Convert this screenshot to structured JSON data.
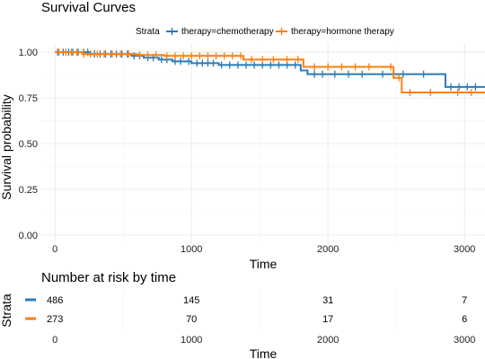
{
  "title": "Survival Curves",
  "legend": {
    "title": "Strata",
    "entries": [
      {
        "label": "therapy=chemotherapy",
        "color": "#2c7bb6"
      },
      {
        "label": "therapy=hormone therapy",
        "color": "#ff7f0e"
      }
    ]
  },
  "risk_table": {
    "title": "Number at risk by time",
    "ylabel": "Strata",
    "xlabel": "Time",
    "x_ticks": [
      "0",
      "1000",
      "2000",
      "3000"
    ],
    "rows": [
      {
        "color": "#2c7bb6",
        "counts": [
          "486",
          "145",
          "31",
          "7"
        ]
      },
      {
        "color": "#ff7f0e",
        "counts": [
          "273",
          "70",
          "17",
          "6"
        ]
      }
    ]
  },
  "chart_data": {
    "type": "line",
    "title": "Survival Curves",
    "xlabel": "Time",
    "ylabel": "Survival probability",
    "xlim": [
      -100,
      3150
    ],
    "ylim": [
      -0.05,
      1.05
    ],
    "x_ticks": [
      0,
      1000,
      2000,
      3000
    ],
    "y_ticks": [
      0,
      0.25,
      0.5,
      0.75,
      1.0
    ],
    "y_tick_labels": [
      "0.00",
      "0.25",
      "0.50",
      "0.75",
      "1.00"
    ],
    "grid": true,
    "legend_position": "top",
    "series": [
      {
        "name": "therapy=chemotherapy",
        "color": "#2c7bb6",
        "steps": [
          [
            0,
            1.0
          ],
          [
            260,
            0.99
          ],
          [
            560,
            0.98
          ],
          [
            650,
            0.97
          ],
          [
            760,
            0.96
          ],
          [
            860,
            0.95
          ],
          [
            1000,
            0.94
          ],
          [
            1200,
            0.93
          ],
          [
            1800,
            0.9
          ],
          [
            1850,
            0.88
          ],
          [
            2860,
            0.81
          ],
          [
            3150,
            0.81
          ]
        ],
        "censor_times": [
          20,
          60,
          100,
          130,
          170,
          210,
          240,
          290,
          330,
          370,
          410,
          450,
          490,
          530,
          580,
          620,
          680,
          720,
          780,
          820,
          880,
          920,
          980,
          1040,
          1080,
          1120,
          1160,
          1220,
          1280,
          1340,
          1400,
          1460,
          1520,
          1580,
          1640,
          1700,
          1760,
          1900,
          1960,
          2050,
          2150,
          2250,
          2400,
          2550,
          2700,
          2900,
          2960,
          3020,
          3080
        ]
      },
      {
        "name": "therapy=hormone therapy",
        "color": "#ff7f0e",
        "steps": [
          [
            0,
            1.0
          ],
          [
            200,
            0.99
          ],
          [
            600,
            0.985
          ],
          [
            800,
            0.98
          ],
          [
            1380,
            0.96
          ],
          [
            1820,
            0.92
          ],
          [
            2480,
            0.86
          ],
          [
            2540,
            0.78
          ],
          [
            3150,
            0.78
          ]
        ],
        "censor_times": [
          30,
          80,
          120,
          160,
          210,
          260,
          310,
          360,
          420,
          480,
          540,
          620,
          680,
          740,
          820,
          880,
          940,
          1000,
          1060,
          1120,
          1180,
          1240,
          1300,
          1360,
          1440,
          1520,
          1600,
          1700,
          1780,
          1900,
          2000,
          2100,
          2200,
          2300,
          2460,
          2520,
          2600,
          2750,
          2950,
          3050
        ]
      }
    ]
  }
}
